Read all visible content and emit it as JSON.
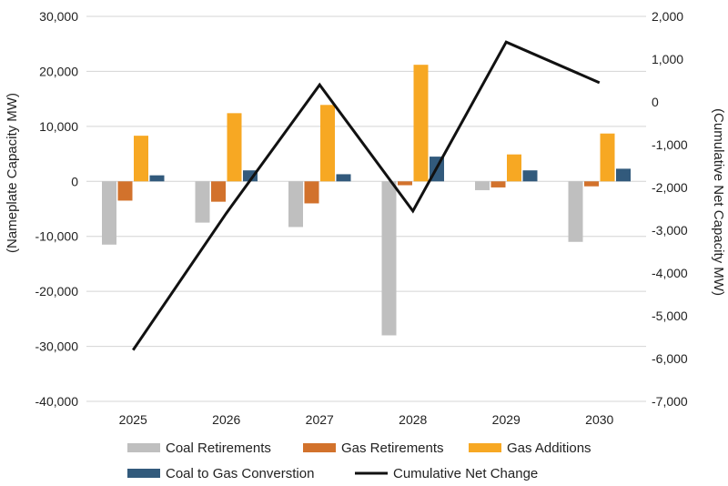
{
  "chart_data": {
    "type": "bar",
    "title": "",
    "categories": [
      "2025",
      "2026",
      "2027",
      "2028",
      "2029",
      "2030"
    ],
    "ylabel_left": "(Nameplate Capacity MW)",
    "ylabel_right": "(Cumulative Net Capacity MW)",
    "ylim_left": [
      -40000,
      30000
    ],
    "ylim_right": [
      -7000,
      2000
    ],
    "yticks_left": [
      30000,
      20000,
      10000,
      0,
      -10000,
      -20000,
      -30000,
      -40000
    ],
    "yticks_left_labels": [
      "30,000",
      "20,000",
      "10,000",
      "0",
      "-10,000",
      "-20,000",
      "-30,000",
      "-40,000"
    ],
    "yticks_right": [
      2000,
      1000,
      0,
      -1000,
      -2000,
      -3000,
      -4000,
      -5000,
      -6000,
      -7000
    ],
    "yticks_right_labels": [
      "2,000",
      "1,000",
      "0",
      "-1,000",
      "-2,000",
      "-3,000",
      "-4,000",
      "-5,000",
      "-6,000",
      "-7,000"
    ],
    "series": [
      {
        "name": "Coal Retirements",
        "axis": "left",
        "kind": "bar",
        "color": "#bfbfbf",
        "values": [
          -11500,
          -7500,
          -8300,
          -28000,
          -1600,
          -11000
        ]
      },
      {
        "name": "Gas Retirements",
        "axis": "left",
        "kind": "bar",
        "color": "#d2722c",
        "values": [
          -3500,
          -3700,
          -4000,
          -700,
          -1100,
          -900
        ]
      },
      {
        "name": "Gas Additions",
        "axis": "left",
        "kind": "bar",
        "color": "#f7a823",
        "values": [
          8300,
          12400,
          13900,
          21200,
          4900,
          8700
        ]
      },
      {
        "name": "Coal to Gas Converstion",
        "axis": "left",
        "kind": "bar",
        "color": "#325a7c",
        "values": [
          1100,
          2000,
          1300,
          4500,
          2000,
          2300
        ]
      },
      {
        "name": "Cumulative Net Change",
        "axis": "right",
        "kind": "line",
        "color": "#111111",
        "values": [
          -5800,
          -2600,
          400,
          -2550,
          1400,
          450
        ]
      }
    ],
    "grid": "horizontal",
    "legend_position": "bottom"
  }
}
